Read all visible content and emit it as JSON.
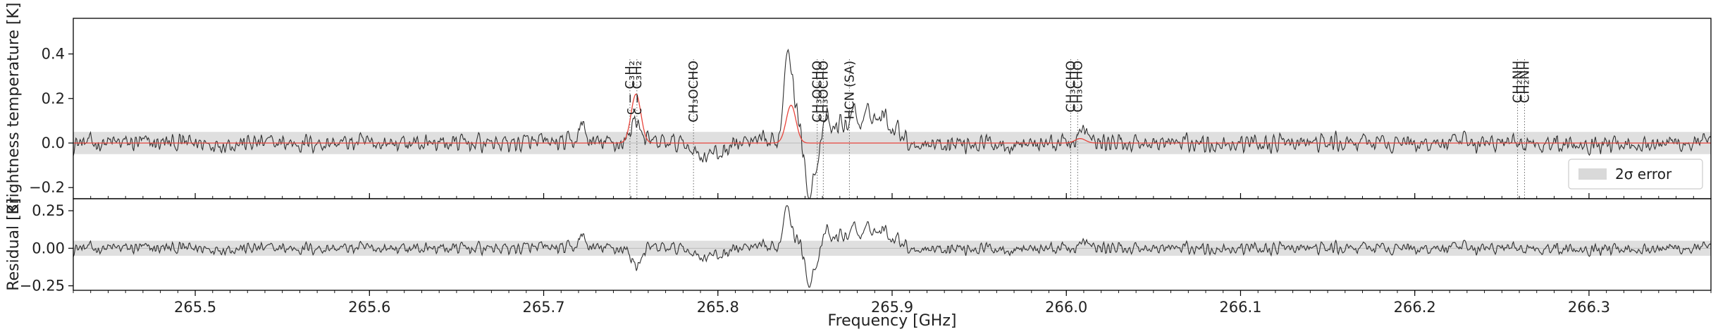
{
  "chart_data": {
    "type": "line",
    "x_range": [
      265.43,
      266.37
    ],
    "xlabel": "Frequency [GHz]",
    "x_ticks": [
      265.5,
      265.6,
      265.7,
      265.8,
      265.9,
      266.0,
      266.1,
      266.2,
      266.3
    ],
    "x_tick_labels": [
      "265.5",
      "265.6",
      "265.7",
      "265.8",
      "265.9",
      "266.0",
      "266.1",
      "266.2",
      "266.3"
    ],
    "sigma_band": 0.05,
    "legend": {
      "label": "2σ error",
      "placement": "lower-right"
    },
    "top_panel": {
      "ylabel": "Brightness temperature [K]",
      "ylim": [
        -0.25,
        0.56
      ],
      "y_ticks": [
        -0.2,
        0.0,
        0.2,
        0.4
      ],
      "y_tick_labels": [
        "−0.2",
        "0.0",
        "0.2",
        "0.4"
      ],
      "series": [
        {
          "color": "#303030",
          "role": "observed"
        },
        {
          "color": "#e8453c",
          "role": "model"
        }
      ]
    },
    "bottom_panel": {
      "ylabel": "Residual [K]",
      "ylim": [
        -0.28,
        0.33
      ],
      "y_ticks": [
        -0.25,
        0.0,
        0.25
      ],
      "y_tick_labels": [
        "−0.25",
        "0.00",
        "0.25"
      ],
      "series": [
        {
          "color": "#303030",
          "role": "residual"
        }
      ]
    },
    "features": [
      {
        "freq": 265.84,
        "amp": 0.38,
        "width": 0.0022
      },
      {
        "freq": 265.846,
        "amp": 0.1,
        "width": 0.0022
      },
      {
        "freq": 265.852,
        "amp": -0.21,
        "width": 0.0025
      },
      {
        "freq": 265.858,
        "amp": -0.07,
        "width": 0.003
      },
      {
        "freq": 265.862,
        "amp": 0.14,
        "width": 0.002
      },
      {
        "freq": 265.87,
        "amp": 0.09,
        "width": 0.003
      },
      {
        "freq": 265.878,
        "amp": 0.15,
        "width": 0.0025
      },
      {
        "freq": 265.887,
        "amp": 0.14,
        "width": 0.003
      },
      {
        "freq": 265.895,
        "amp": 0.12,
        "width": 0.003
      },
      {
        "freq": 265.903,
        "amp": 0.07,
        "width": 0.003
      },
      {
        "freq": 265.722,
        "amp": 0.08,
        "width": 0.002
      },
      {
        "freq": 265.79,
        "amp": -0.05,
        "width": 0.004
      },
      {
        "freq": 265.8,
        "amp": -0.05,
        "width": 0.004
      },
      {
        "freq": 266.01,
        "amp": 0.04,
        "width": 0.003
      }
    ],
    "model_peaks": [
      {
        "freq": 265.753,
        "amp": 0.22,
        "width": 0.0028
      },
      {
        "freq": 265.842,
        "amp": 0.17,
        "width": 0.0028
      },
      {
        "freq": 266.008,
        "amp": 0.02,
        "width": 0.003
      }
    ],
    "line_ids": [
      {
        "freq": 265.7495,
        "label": "c − C₃H₂"
      },
      {
        "freq": 265.7535,
        "label": "c − C₃H₂"
      },
      {
        "freq": 265.786,
        "label": "CH₃OCHO"
      },
      {
        "freq": 265.857,
        "label": "CH₃OCHO"
      },
      {
        "freq": 265.8605,
        "label": "CH₃OCHO"
      },
      {
        "freq": 265.8755,
        "label": "HCN (SA)"
      },
      {
        "freq": 266.0025,
        "label": "CH₃CHO"
      },
      {
        "freq": 266.0065,
        "label": "CH₃CHO"
      },
      {
        "freq": 266.259,
        "label": "CH₂NH"
      },
      {
        "freq": 266.263,
        "label": "CH₂NH"
      }
    ]
  }
}
